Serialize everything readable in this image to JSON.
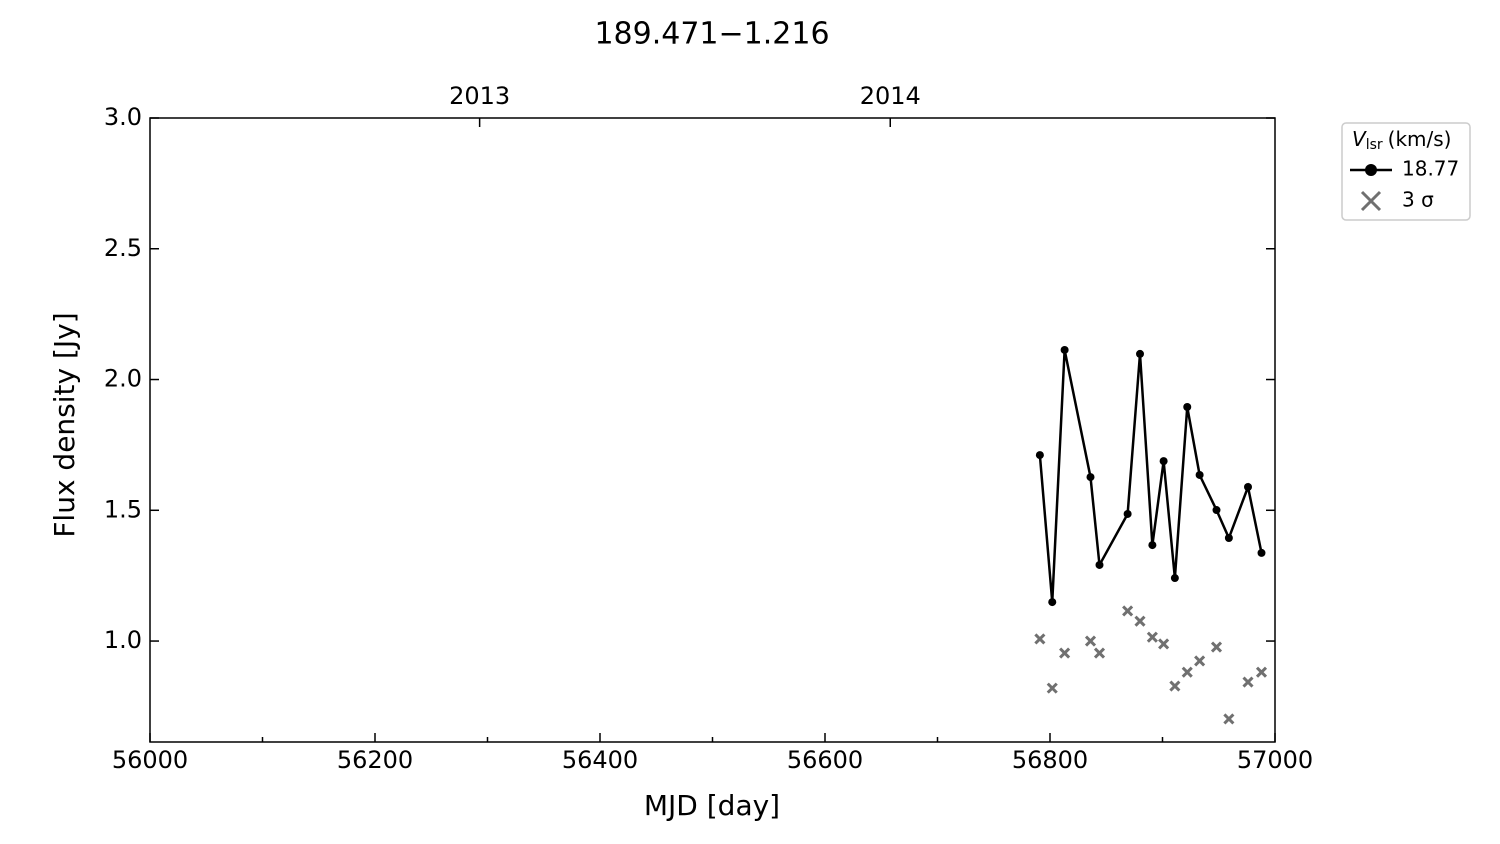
{
  "chart_data": {
    "type": "line",
    "title": "189.471−1.216",
    "xlabel": "MJD [day]",
    "ylabel": "Flux density [Jy]",
    "x": [
      56791,
      56802,
      56813,
      56836,
      56844,
      56869,
      56880,
      56891,
      56901,
      56911,
      56922,
      56933,
      56948,
      56959,
      56976,
      56988
    ],
    "series": [
      {
        "name": "18.77",
        "color": "#000000",
        "style": "line-marker",
        "values": [
          1.711,
          1.149,
          2.113,
          1.627,
          1.291,
          1.486,
          2.098,
          1.367,
          1.688,
          1.241,
          1.895,
          1.635,
          1.501,
          1.394,
          1.589,
          1.337
        ]
      },
      {
        "name": "3 σ",
        "color": "#707070",
        "style": "cross",
        "values": [
          1.008,
          0.82,
          0.954,
          1.0,
          0.954,
          1.115,
          1.076,
          1.015,
          0.989,
          0.828,
          0.881,
          0.924,
          0.977,
          0.702,
          0.843,
          0.881
        ]
      }
    ],
    "legend_title": {
      "symbol": "V",
      "subscript": "lsr",
      "unit": "(km/s)"
    },
    "legend": "outside-upper-right",
    "xlim": [
      56000,
      57000
    ],
    "xticks": [
      56000,
      56200,
      56400,
      56600,
      56800,
      57000
    ],
    "xticks_minor": [
      56100,
      56300,
      56500,
      56700,
      56900
    ],
    "x2ticks": [
      {
        "value": 56293,
        "label": "2013"
      },
      {
        "value": 56658,
        "label": "2014"
      }
    ],
    "ylim": [
      0.614,
      3.0
    ],
    "yticks": [
      {
        "value": 1.0,
        "label": "1.0"
      },
      1.5,
      {
        "value": 2.0,
        "label": "2.0"
      },
      2.5,
      {
        "value": 3.0,
        "label": "3.0"
      }
    ]
  }
}
